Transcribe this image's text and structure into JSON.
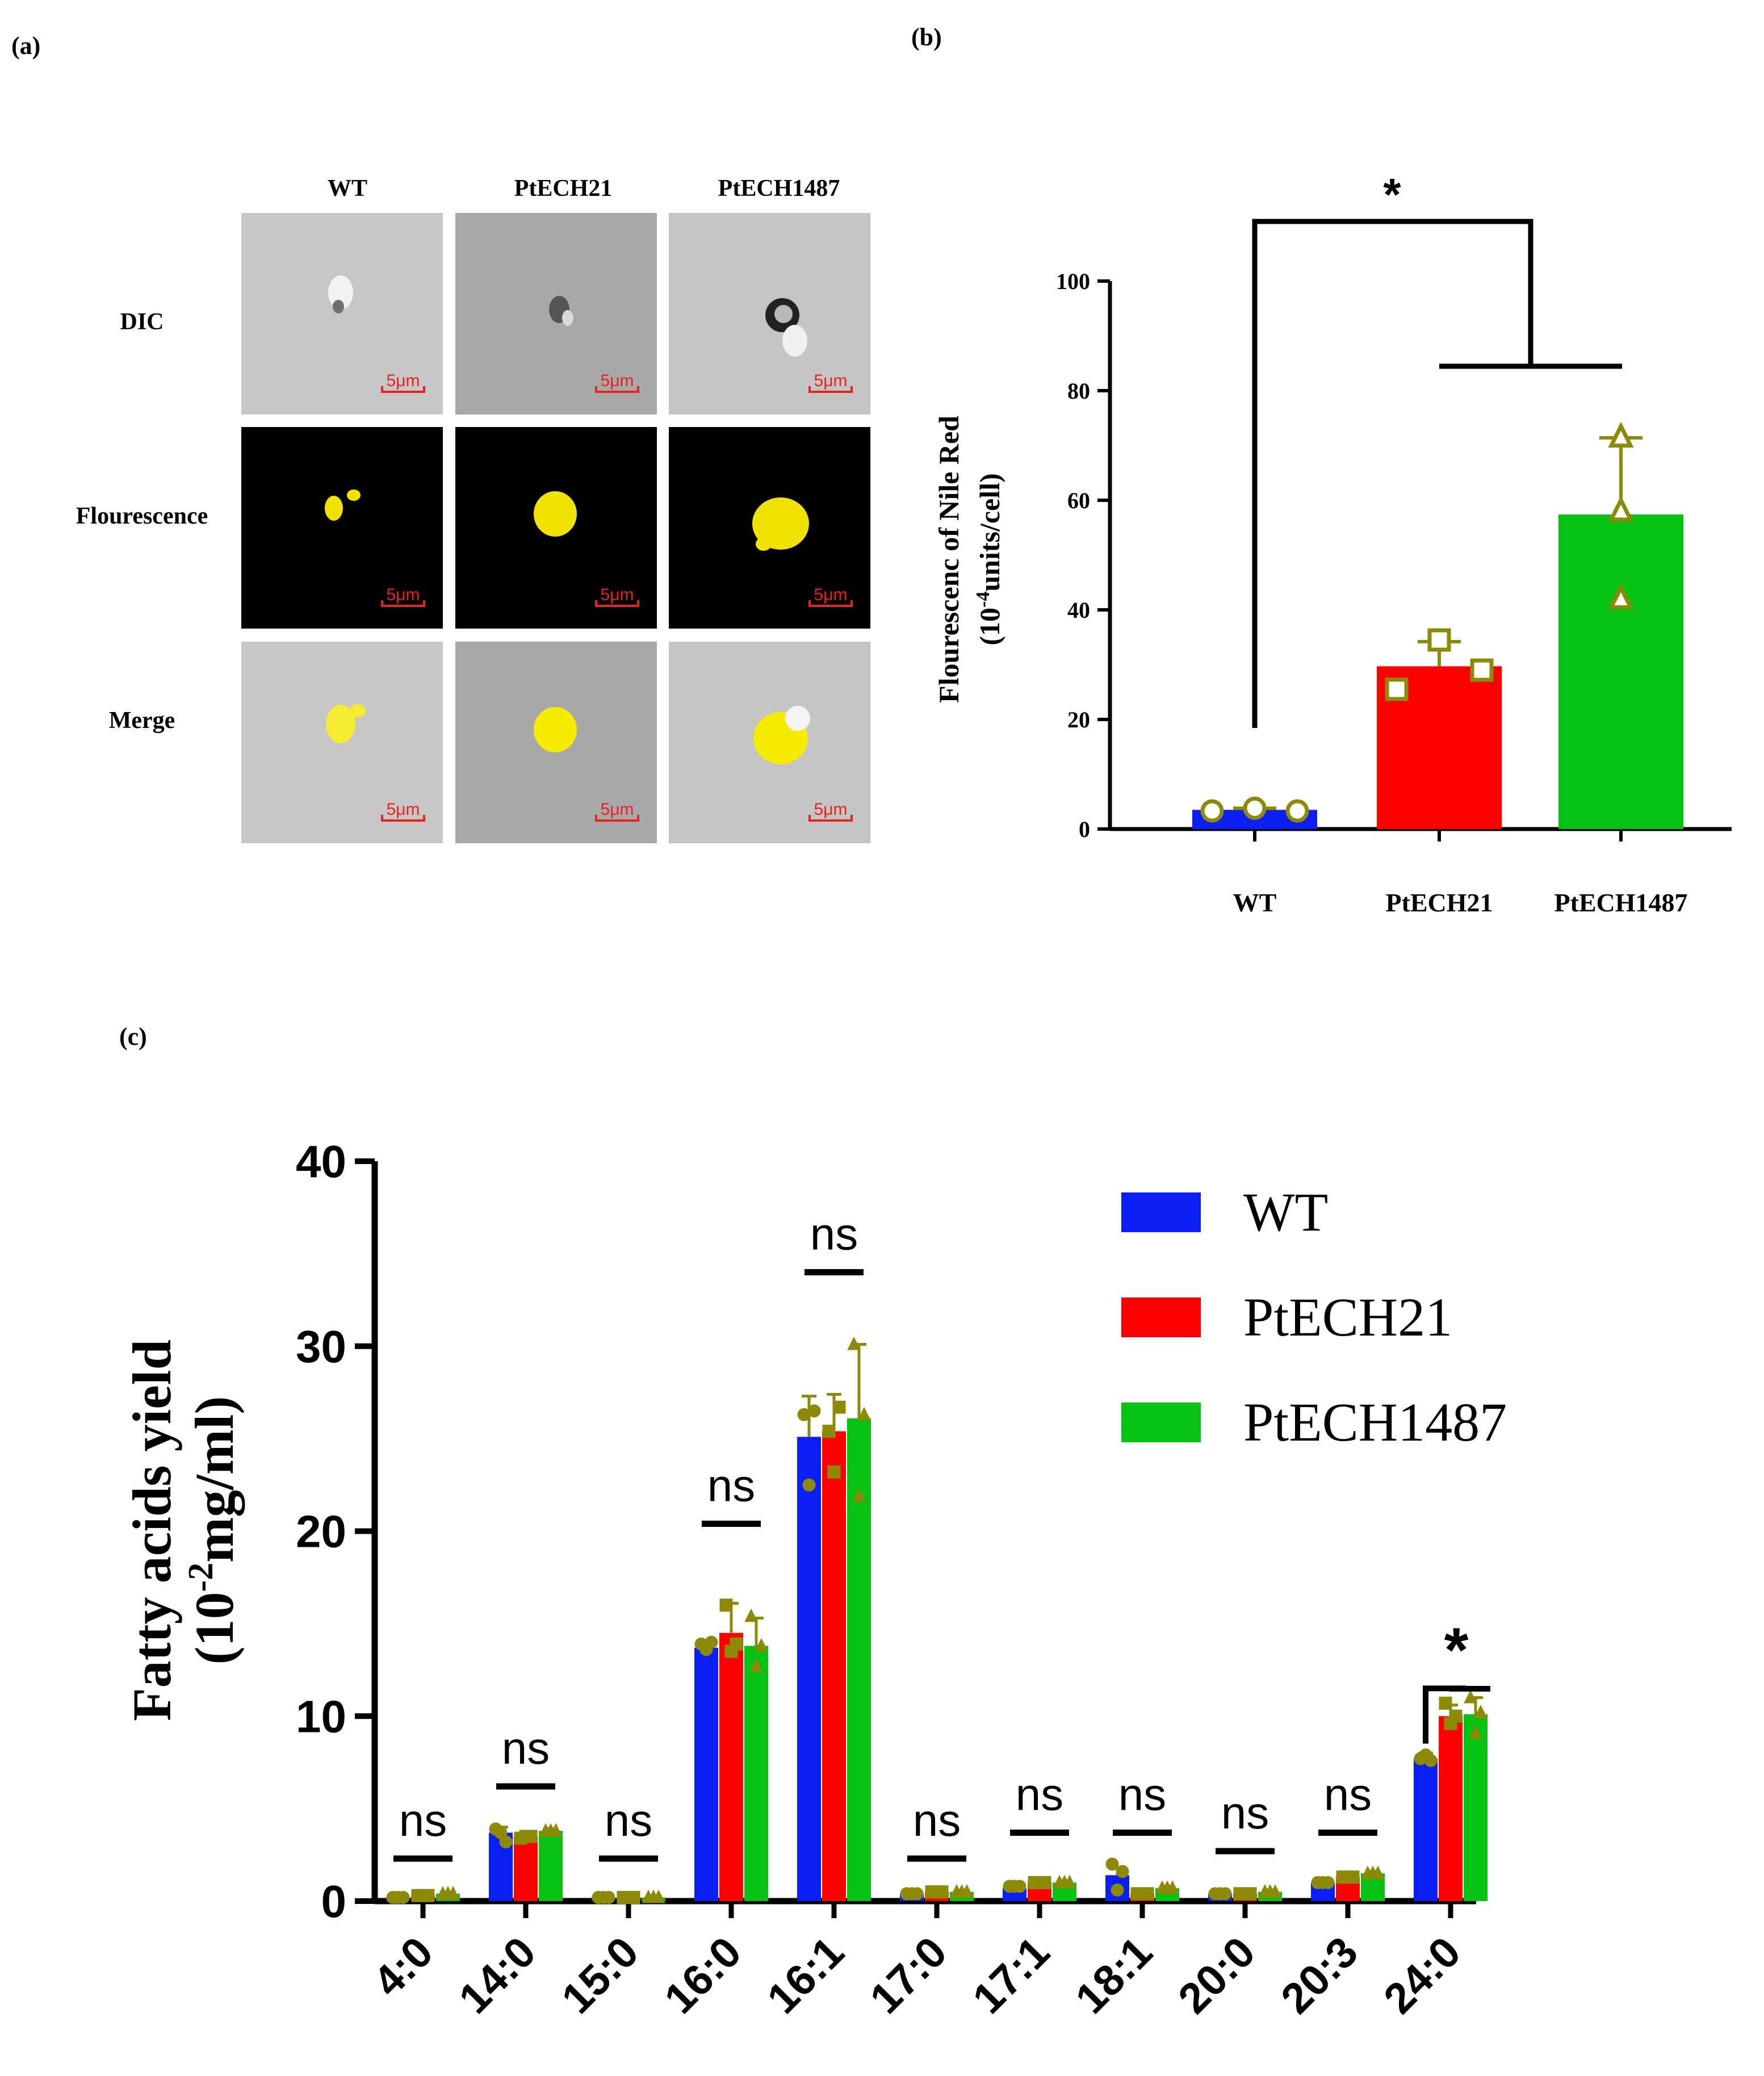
{
  "panels": {
    "a": {
      "label": "(a)",
      "columns": [
        "WT",
        "PtECH21",
        "PtECH1487"
      ],
      "rows": [
        "DIC",
        "Flourescence",
        "Merge"
      ],
      "scale_bar_text": "5μm",
      "colors": {
        "panel_bg_dic": "#c8c8c8",
        "panel_bg_dic_mid": "#a9a9a9",
        "panel_bg_fluor": "#000000",
        "droplet": "#f2e200",
        "scale": "#e8231f"
      }
    },
    "b": {
      "label": "(b)"
    },
    "c": {
      "label": "(c)"
    }
  },
  "chart_data": [
    {
      "id": "b",
      "type": "bar",
      "categories": [
        "WT",
        "PtECH21",
        "PtECH1487"
      ],
      "values": [
        3.5,
        29.7,
        57.4
      ],
      "error_plus": [
        0.3,
        4.5,
        14.0
      ],
      "points": [
        [
          3.3,
          3.8,
          3.3
        ],
        [
          25.5,
          34.5,
          29.0
        ],
        [
          42.0,
          58.0,
          71.5
        ]
      ],
      "point_markers": [
        "circle",
        "square",
        "triangle"
      ],
      "bar_colors": [
        "#0a1ff5",
        "#ff0000",
        "#08c213"
      ],
      "point_color": "#8c8a06",
      "ylabel_line1": "Flourescenc of Nile Red",
      "ylabel_line2_pre": "(10",
      "ylabel_line2_sup": "-4",
      "ylabel_line2_post": "units/cell)",
      "ylim": [
        0,
        100
      ],
      "yticks": [
        0,
        20,
        40,
        60,
        80,
        100
      ],
      "significance": "*"
    },
    {
      "id": "c",
      "type": "bar",
      "categories": [
        "4:0",
        "14:0",
        "15:0",
        "16:0",
        "16:1",
        "17:0",
        "17:1",
        "18:1",
        "20:0",
        "20:3",
        "24:0"
      ],
      "series": [
        {
          "name": "WT",
          "color": "#0a1ff5",
          "marker": "circle",
          "values": [
            0.2,
            3.7,
            0.2,
            13.7,
            25.1,
            0.4,
            0.7,
            1.4,
            0.4,
            1.0,
            7.7
          ],
          "error": [
            0.05,
            0.3,
            0.05,
            0.3,
            2.2,
            0.05,
            0.15,
            0.4,
            0.05,
            0.1,
            0.3
          ],
          "points": [
            [
              0.2,
              0.2,
              0.2
            ],
            [
              3.9,
              3.7,
              3.2
            ],
            [
              0.2,
              0.2,
              0.2
            ],
            [
              13.9,
              13.6,
              14.0
            ],
            [
              26.3,
              22.5,
              26.5
            ],
            [
              0.4,
              0.4,
              0.4
            ],
            [
              0.8,
              0.8,
              0.8
            ],
            [
              2.0,
              0.6,
              1.6
            ],
            [
              0.4,
              0.4,
              0.4
            ],
            [
              1.0,
              1.0,
              1.0
            ],
            [
              7.7,
              7.9,
              7.6
            ]
          ]
        },
        {
          "name": "PtECH21",
          "color": "#ff0000",
          "marker": "square",
          "values": [
            0.3,
            3.5,
            0.2,
            14.5,
            25.4,
            0.5,
            1.0,
            0.4,
            0.4,
            1.3,
            10.0
          ],
          "error": [
            0.05,
            0.1,
            0.05,
            1.6,
            2.0,
            0.05,
            0.1,
            0.05,
            0.05,
            0.1,
            0.6
          ],
          "points": [
            [
              0.3,
              0.3,
              0.3
            ],
            [
              3.4,
              3.5,
              3.5
            ],
            [
              0.2,
              0.2,
              0.2
            ],
            [
              16.0,
              13.5,
              13.9
            ],
            [
              25.4,
              23.2,
              26.7
            ],
            [
              0.5,
              0.5,
              0.5
            ],
            [
              1.0,
              1.0,
              1.0
            ],
            [
              0.4,
              0.4,
              0.4
            ],
            [
              0.4,
              0.4,
              0.4
            ],
            [
              1.3,
              1.3,
              1.3
            ],
            [
              10.7,
              9.6,
              10.0
            ]
          ]
        },
        {
          "name": "PtECH1487",
          "color": "#08c213",
          "marker": "triangle",
          "values": [
            0.4,
            3.8,
            0.2,
            13.8,
            26.1,
            0.5,
            1.0,
            0.7,
            0.5,
            1.5,
            10.1
          ],
          "error": [
            0.05,
            0.1,
            0.05,
            1.5,
            4.0,
            0.05,
            0.1,
            0.1,
            0.05,
            0.1,
            0.9
          ],
          "points": [
            [
              0.4,
              0.4,
              0.4
            ],
            [
              3.8,
              3.8,
              3.8
            ],
            [
              0.2,
              0.2,
              0.2
            ],
            [
              15.4,
              12.7,
              13.8
            ],
            [
              30.1,
              21.9,
              26.3
            ],
            [
              0.5,
              0.5,
              0.5
            ],
            [
              1.0,
              1.0,
              1.0
            ],
            [
              0.7,
              0.7,
              0.7
            ],
            [
              0.5,
              0.5,
              0.5
            ],
            [
              1.5,
              1.5,
              1.5
            ],
            [
              11.0,
              9.1,
              10.2
            ]
          ]
        }
      ],
      "point_color": "#8c8a06",
      "annotations": [
        "ns",
        "ns",
        "ns",
        "ns",
        "ns",
        "ns",
        "ns",
        "ns",
        "ns",
        "ns",
        "*"
      ],
      "annotation_heights": [
        2.3,
        6.2,
        2.3,
        20.4,
        34.0,
        2.3,
        3.7,
        3.7,
        2.7,
        3.7,
        11.5
      ],
      "ylabel_line1": "Fatty acids yield",
      "ylabel_line2_pre": "(10",
      "ylabel_line2_sup": "-2",
      "ylabel_line2_post": "mg/ml)",
      "ylim": [
        0,
        40
      ],
      "yticks": [
        0,
        10,
        20,
        30,
        40
      ],
      "legend": "top-right"
    }
  ]
}
